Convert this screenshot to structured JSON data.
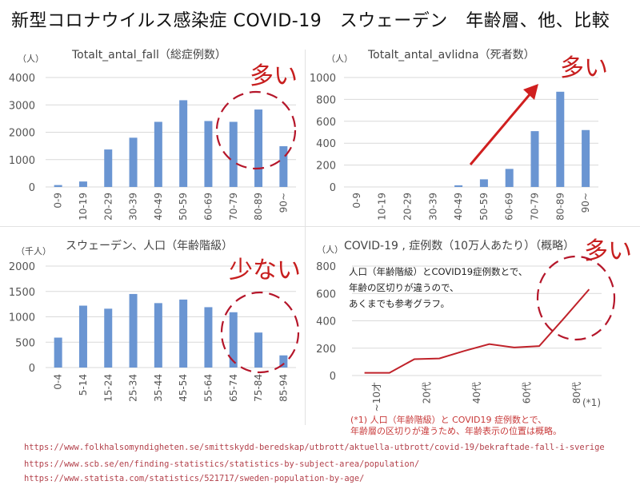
{
  "page": {
    "title": "新型コロナウイルス感染症 COVID-19　スウェーデン　年齢層、他、比較",
    "footnote_line1": "(*1) 人口（年齢階級）と COVID19 症例数とで、",
    "footnote_line2": "年齢層の区切りが違うため、年齢表示の位置は概略。",
    "urls": [
      "https://www.folkhalsomyndigheten.se/smittskydd-beredskap/utbrott/aktuella-utbrott/covid-19/bekraftade-fall-i-sverige",
      "https://www.scb.se/en/finding-statistics/statistics-by-subject-area/population/",
      "https://www.statista.com/statistics/521717/sweden-population-by-age/"
    ],
    "colors": {
      "bar": "#6a95d2",
      "line": "#c0222a",
      "annotation": "#c71e1e",
      "url": "#b3414b"
    }
  },
  "chart_data": [
    {
      "id": "cases",
      "type": "bar",
      "title": "Totalt_antal_fall（総症例数）",
      "unit_label": "（人）",
      "xlabel": "",
      "ylabel": "（人）",
      "categories": [
        "0-9",
        "10-19",
        "20-29",
        "30-39",
        "40-49",
        "50-59",
        "60-69",
        "70-79",
        "80-89",
        "90~"
      ],
      "values": [
        70,
        200,
        1370,
        1800,
        2380,
        3170,
        2410,
        2380,
        2830,
        1490
      ],
      "ylim": [
        0,
        4000
      ],
      "yticks": [
        0,
        1000,
        2000,
        3000,
        4000
      ],
      "grid": true,
      "annotation": "多い",
      "annotation_highlight": [
        "70-79",
        "80-89",
        "90~"
      ]
    },
    {
      "id": "deaths",
      "type": "bar",
      "title": "Totalt_antal_avlidna（死者数）",
      "unit_label": "（人）",
      "xlabel": "",
      "ylabel": "（人）",
      "categories": [
        "0-9",
        "10-19",
        "20-29",
        "30-39",
        "40-49",
        "50-59",
        "60-69",
        "70-79",
        "80-89",
        "90~"
      ],
      "values": [
        0,
        0,
        0,
        0,
        15,
        70,
        165,
        510,
        870,
        520
      ],
      "ylim": [
        0,
        1000
      ],
      "yticks": [
        0,
        200,
        400,
        600,
        800,
        1000
      ],
      "grid": true,
      "annotation": "多い",
      "annotation_arrow": "increasing from 40-49 toward 80-89"
    },
    {
      "id": "population",
      "type": "bar",
      "title": "スウェーデン、人口（年齢階級）",
      "unit_label": "（千人）",
      "xlabel": "",
      "ylabel": "（千人）",
      "categories": [
        "0-4",
        "5-14",
        "15-24",
        "25-34",
        "35-44",
        "45-54",
        "55-64",
        "65-74",
        "75-84",
        "85-94"
      ],
      "values": [
        590,
        1220,
        1160,
        1450,
        1270,
        1340,
        1190,
        1090,
        690,
        240
      ],
      "ylim": [
        0,
        2000
      ],
      "yticks": [
        0,
        500,
        1000,
        1500,
        2000
      ],
      "grid": true,
      "annotation": "少ない",
      "annotation_highlight": [
        "65-74",
        "75-84",
        "85-94"
      ]
    },
    {
      "id": "rate",
      "type": "line",
      "title": "COVID-19 , 症例数（10万人あたり）（概略）",
      "unit_label": "（人）",
      "xlabel": "(*1)",
      "ylabel": "（人）",
      "x_tick_labels": [
        "~10才",
        "20代",
        "40代",
        "60代",
        "80代"
      ],
      "x_tick_positions": [
        1,
        3,
        5,
        7,
        9
      ],
      "values": [
        20,
        20,
        120,
        125,
        180,
        230,
        205,
        215,
        420,
        630
      ],
      "ylim": [
        0,
        800
      ],
      "yticks": [
        0,
        200,
        400,
        600,
        800
      ],
      "grid": true,
      "note": [
        "人口（年齢階級）とCOVID19症例数とで、",
        "年齢の区切りが違うので、",
        "あくまでも参考グラフ。"
      ],
      "annotation": "多い"
    }
  ]
}
